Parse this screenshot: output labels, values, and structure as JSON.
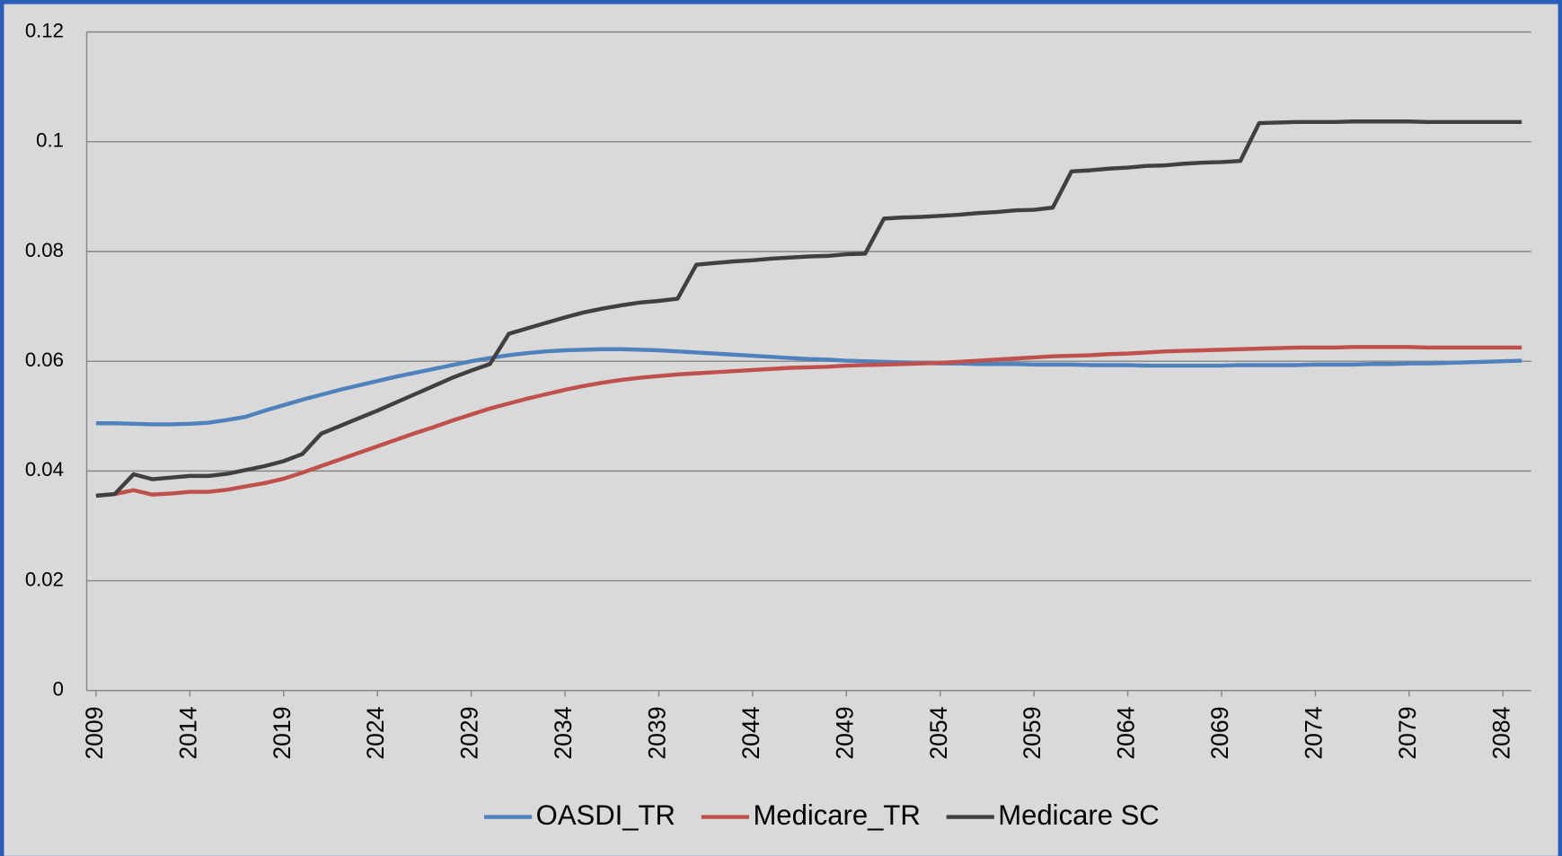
{
  "chart_data": {
    "type": "line",
    "x": [
      2009,
      2010,
      2011,
      2012,
      2013,
      2014,
      2015,
      2016,
      2017,
      2018,
      2019,
      2020,
      2021,
      2022,
      2023,
      2024,
      2025,
      2026,
      2027,
      2028,
      2029,
      2030,
      2031,
      2032,
      2033,
      2034,
      2035,
      2036,
      2037,
      2038,
      2039,
      2040,
      2041,
      2042,
      2043,
      2044,
      2045,
      2046,
      2047,
      2048,
      2049,
      2050,
      2051,
      2052,
      2053,
      2054,
      2055,
      2056,
      2057,
      2058,
      2059,
      2060,
      2061,
      2062,
      2063,
      2064,
      2065,
      2066,
      2067,
      2068,
      2069,
      2070,
      2071,
      2072,
      2073,
      2074,
      2075,
      2076,
      2077,
      2078,
      2079,
      2080,
      2081,
      2082,
      2083,
      2084,
      2085
    ],
    "xlim": [
      2008.5,
      2085.5
    ],
    "xticks": [
      2009,
      2014,
      2019,
      2024,
      2029,
      2034,
      2039,
      2044,
      2049,
      2054,
      2059,
      2064,
      2069,
      2074,
      2079,
      2084
    ],
    "ylim": [
      0,
      0.12
    ],
    "yticks": [
      0,
      0.02,
      0.04,
      0.06,
      0.08,
      0.1,
      0.12
    ],
    "grid": true,
    "legend": "bottom",
    "series": [
      {
        "name": "OASDI_TR",
        "color": "#4f81bd",
        "values": [
          0.0487,
          0.0487,
          0.0486,
          0.0485,
          0.0485,
          0.0486,
          0.0488,
          0.0493,
          0.0499,
          0.051,
          0.052,
          0.053,
          0.0539,
          0.0548,
          0.0556,
          0.0564,
          0.0572,
          0.0579,
          0.0586,
          0.0593,
          0.06,
          0.0606,
          0.0611,
          0.0615,
          0.0618,
          0.062,
          0.0621,
          0.0622,
          0.0622,
          0.0621,
          0.062,
          0.0618,
          0.0616,
          0.0614,
          0.0612,
          0.061,
          0.0608,
          0.0606,
          0.0604,
          0.0603,
          0.0601,
          0.06,
          0.0599,
          0.0598,
          0.0597,
          0.0596,
          0.0596,
          0.0595,
          0.0595,
          0.0595,
          0.0594,
          0.0594,
          0.0594,
          0.0593,
          0.0593,
          0.0593,
          0.0592,
          0.0592,
          0.0592,
          0.0592,
          0.0592,
          0.0593,
          0.0593,
          0.0593,
          0.0593,
          0.0594,
          0.0594,
          0.0594,
          0.0595,
          0.0595,
          0.0596,
          0.0596,
          0.0597,
          0.0598,
          0.0599,
          0.06,
          0.0601
        ]
      },
      {
        "name": "Medicare_TR",
        "color": "#c0504d",
        "values": [
          0.0355,
          0.0358,
          0.0365,
          0.0357,
          0.0359,
          0.0362,
          0.0362,
          0.0366,
          0.0372,
          0.0378,
          0.0386,
          0.0397,
          0.0409,
          0.0421,
          0.0433,
          0.0445,
          0.0457,
          0.0469,
          0.048,
          0.0492,
          0.0503,
          0.0514,
          0.0523,
          0.0532,
          0.054,
          0.0548,
          0.0555,
          0.0561,
          0.0566,
          0.057,
          0.0573,
          0.0576,
          0.0578,
          0.058,
          0.0582,
          0.0584,
          0.0586,
          0.0588,
          0.0589,
          0.059,
          0.0592,
          0.0593,
          0.0594,
          0.0595,
          0.0596,
          0.0597,
          0.0599,
          0.0601,
          0.0603,
          0.0605,
          0.0607,
          0.0609,
          0.061,
          0.0611,
          0.0613,
          0.0614,
          0.0616,
          0.0618,
          0.0619,
          0.062,
          0.0621,
          0.0622,
          0.0623,
          0.0624,
          0.0625,
          0.0625,
          0.0625,
          0.0626,
          0.0626,
          0.0626,
          0.0626,
          0.0625,
          0.0625,
          0.0625,
          0.0625,
          0.0625,
          0.0625
        ]
      },
      {
        "name": "Medicare SC",
        "color": "#404040",
        "values": [
          0.0355,
          0.0358,
          0.0394,
          0.0385,
          0.0388,
          0.0391,
          0.0391,
          0.0395,
          0.0402,
          0.0409,
          0.0418,
          0.0431,
          0.0468,
          0.0482,
          0.0496,
          0.051,
          0.0525,
          0.054,
          0.0555,
          0.057,
          0.0583,
          0.0595,
          0.065,
          0.066,
          0.067,
          0.068,
          0.0689,
          0.0696,
          0.0702,
          0.0707,
          0.071,
          0.0714,
          0.0776,
          0.0779,
          0.0782,
          0.0784,
          0.0787,
          0.0789,
          0.0791,
          0.0792,
          0.0795,
          0.0796,
          0.086,
          0.0862,
          0.0863,
          0.0865,
          0.0867,
          0.087,
          0.0872,
          0.0875,
          0.0876,
          0.088,
          0.0946,
          0.0948,
          0.0951,
          0.0953,
          0.0956,
          0.0957,
          0.096,
          0.0962,
          0.0963,
          0.0965,
          0.1034,
          0.1035,
          0.1036,
          0.1036,
          0.1036,
          0.1037,
          0.1037,
          0.1037,
          0.1037,
          0.1036,
          0.1036,
          0.1036,
          0.1036,
          0.1036,
          0.1036
        ]
      }
    ]
  }
}
